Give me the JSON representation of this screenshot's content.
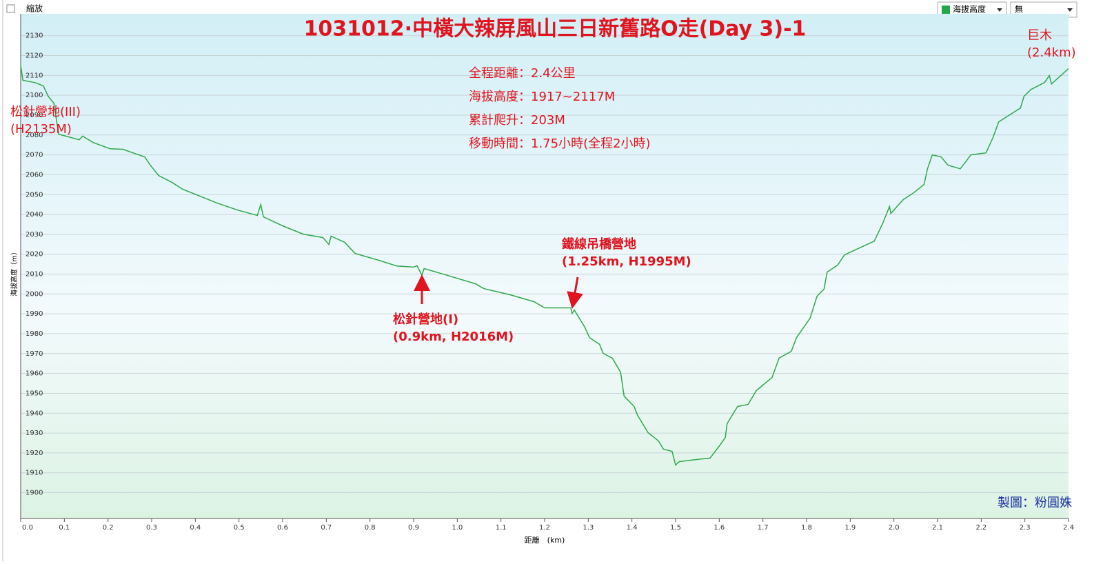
{
  "ui": {
    "zoom_label": "縮放",
    "series_select": "海拔高度",
    "mode_select": "無"
  },
  "chart_data": {
    "type": "line",
    "title": "1031012·中橫大辣屏風山三日新舊路O走(Day 3)-1",
    "info": [
      "全程距離：2.4公里",
      "海拔高度：1917~2117M",
      "累計爬升：203M",
      "移動時間：1.75小時(全程2小時)"
    ],
    "annotations": [
      [
        "松針營地(III)",
        "(H2135M)"
      ],
      [
        "松針營地(I)",
        "(0.9km, H2016M)"
      ],
      [
        "鐵線吊橋營地",
        "(1.25km, H1995M)"
      ],
      [
        "巨木",
        "(2.4km)"
      ]
    ],
    "credit": "製圖：粉圓姝",
    "x_label": "距離　(km)",
    "y_label": "海拔高度（m）",
    "xlim": [
      0,
      2.4
    ],
    "ylim": [
      1887,
      2141
    ],
    "xticks": [
      {
        "value": 0,
        "label": "0.0"
      },
      0.1,
      0.2,
      0.3,
      0.4,
      0.5,
      0.6,
      0.7,
      0.8,
      0.9,
      {
        "value": 1,
        "label": "1.0"
      },
      1.1,
      1.2,
      1.3,
      1.4,
      1.5,
      1.6,
      1.7,
      1.8,
      1.9,
      {
        "value": 2,
        "label": "2.0"
      },
      2.1,
      2.2,
      2.3,
      2.4
    ],
    "yticks": [
      1900,
      1910,
      1920,
      1930,
      1940,
      1950,
      1960,
      1970,
      1980,
      1990,
      2000,
      2010,
      2020,
      2030,
      2040,
      2050,
      2060,
      2070,
      2080,
      2090,
      2100,
      2110,
      2120,
      2130
    ],
    "grid": true,
    "series": [
      {
        "name": "海拔高度",
        "color": "#2ea84a",
        "x": [
          0,
          0.005,
          0.032,
          0.052,
          0.063,
          0.076,
          0.087,
          0.134,
          0.142,
          0.166,
          0.205,
          0.234,
          0.261,
          0.284,
          0.297,
          0.316,
          0.347,
          0.371,
          0.411,
          0.45,
          0.497,
          0.542,
          0.55,
          0.556,
          0.6,
          0.647,
          0.692,
          0.706,
          0.711,
          0.742,
          0.766,
          0.821,
          0.861,
          0.9,
          0.908,
          0.919,
          0.924,
          0.963,
          1.042,
          1.058,
          1.066,
          1.121,
          1.176,
          1.2,
          1.26,
          1.263,
          1.268,
          1.292,
          1.303,
          1.326,
          1.334,
          1.355,
          1.374,
          1.382,
          1.405,
          1.413,
          1.437,
          1.461,
          1.472,
          1.492,
          1.5,
          1.508,
          1.532,
          1.579,
          1.603,
          1.614,
          1.618,
          1.642,
          1.666,
          1.685,
          1.721,
          1.737,
          1.765,
          1.777,
          1.808,
          1.824,
          1.84,
          1.847,
          1.871,
          1.887,
          1.955,
          1.974,
          1.99,
          1.993,
          2.021,
          2.045,
          2.069,
          2.077,
          2.088,
          2.108,
          2.124,
          2.152,
          2.167,
          2.176,
          2.211,
          2.227,
          2.24,
          2.29,
          2.298,
          2.314,
          2.345,
          2.356,
          2.361,
          2.4
        ],
        "values": [
          2115,
          2107.5,
          2106.4,
          2104.7,
          2099.5,
          2096,
          2080.4,
          2077.6,
          2079.4,
          2076.2,
          2073.1,
          2072.8,
          2070.7,
          2069,
          2064.8,
          2059.6,
          2056.1,
          2052.7,
          2049.2,
          2045.7,
          2042.2,
          2039.5,
          2045,
          2038.8,
          2034.3,
          2030.1,
          2028.4,
          2024.9,
          2029.1,
          2026,
          2020.4,
          2016.9,
          2014.1,
          2013.5,
          2014.2,
          2009.3,
          2012.8,
          2010.3,
          2005.1,
          2003,
          2002.4,
          1999.6,
          1996.1,
          1993,
          1993,
          1990.2,
          1991.9,
          1983.3,
          1978,
          1974.6,
          1970.1,
          1967.7,
          1960.7,
          1948.6,
          1943.4,
          1938.9,
          1930.2,
          1926,
          1921.9,
          1920.8,
          1913.9,
          1915.6,
          1916.3,
          1917.4,
          1924.3,
          1927.8,
          1934.7,
          1943.4,
          1944.4,
          1951.4,
          1958,
          1967.7,
          1971.1,
          1978,
          1987.8,
          1998.9,
          2002.4,
          2011,
          2014.5,
          2019.7,
          2026.6,
          2035.3,
          2044,
          2040.5,
          2047.4,
          2050.9,
          2055.1,
          2063,
          2070,
          2069,
          2064.8,
          2063,
          2067.2,
          2070,
          2071,
          2078.7,
          2086.6,
          2093.6,
          2099.5,
          2102.9,
          2106.4,
          2109.9,
          2105.7,
          2113.4
        ]
      }
    ]
  }
}
